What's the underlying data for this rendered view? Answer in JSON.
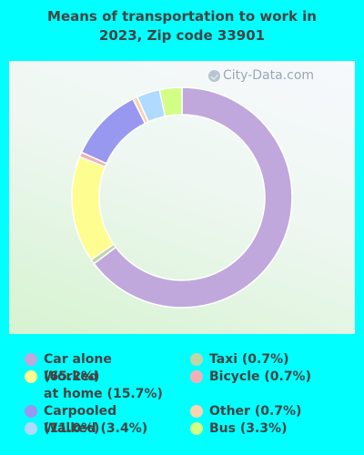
{
  "chart_data": {
    "type": "donut",
    "title": [
      "Means of transportation to work in",
      "2023, Zip code 33901"
    ],
    "watermark": "City-Data.com",
    "series": [
      {
        "label": "Car alone (65.2%)",
        "value": 65.2,
        "color": "#c0a8dc"
      },
      {
        "label": "Taxi (0.7%)",
        "value": 0.7,
        "color": "#c0d4a8"
      },
      {
        "label": "Worked at home (15.7%)",
        "value": 15.7,
        "color": "#fefe90"
      },
      {
        "label": "Bicycle (0.7%)",
        "value": 0.7,
        "color": "#f2b0b6"
      },
      {
        "label": "Carpooled (11.0%)",
        "value": 11.0,
        "color": "#9898f0"
      },
      {
        "label": "Other (0.7%)",
        "value": 0.7,
        "color": "#f8d4b0"
      },
      {
        "label": "Walked (3.4%)",
        "value": 3.4,
        "color": "#b0daff"
      },
      {
        "label": "Bus (3.3%)",
        "value": 3.3,
        "color": "#d2fe86"
      }
    ],
    "legend": {
      "left_column": [
        {
          "label": "Car alone (65.2%)",
          "color": "#c0a8dc"
        },
        {
          "label": "Worked at home (15.7%)",
          "lines": [
            "Worked",
            "at home (15.7%)"
          ],
          "color": "#fefe90"
        },
        {
          "label": "Carpooled (11.0%)",
          "color": "#9898f0"
        },
        {
          "label": "Walked (3.4%)",
          "color": "#b0daff"
        }
      ],
      "right_column": [
        {
          "label": "Taxi (0.7%)",
          "color": "#c0d4a8"
        },
        {
          "label": "Bicycle (0.7%)",
          "color": "#f2b0b6"
        },
        {
          "label": "Other (0.7%)",
          "color": "#f8d4b0"
        },
        {
          "label": "Bus (3.3%)",
          "color": "#d2fe86"
        }
      ]
    },
    "legend_placement": "bottom"
  },
  "colors": {
    "background": "#00ffff",
    "title_text": "#444444",
    "legend_text": "#444444"
  }
}
